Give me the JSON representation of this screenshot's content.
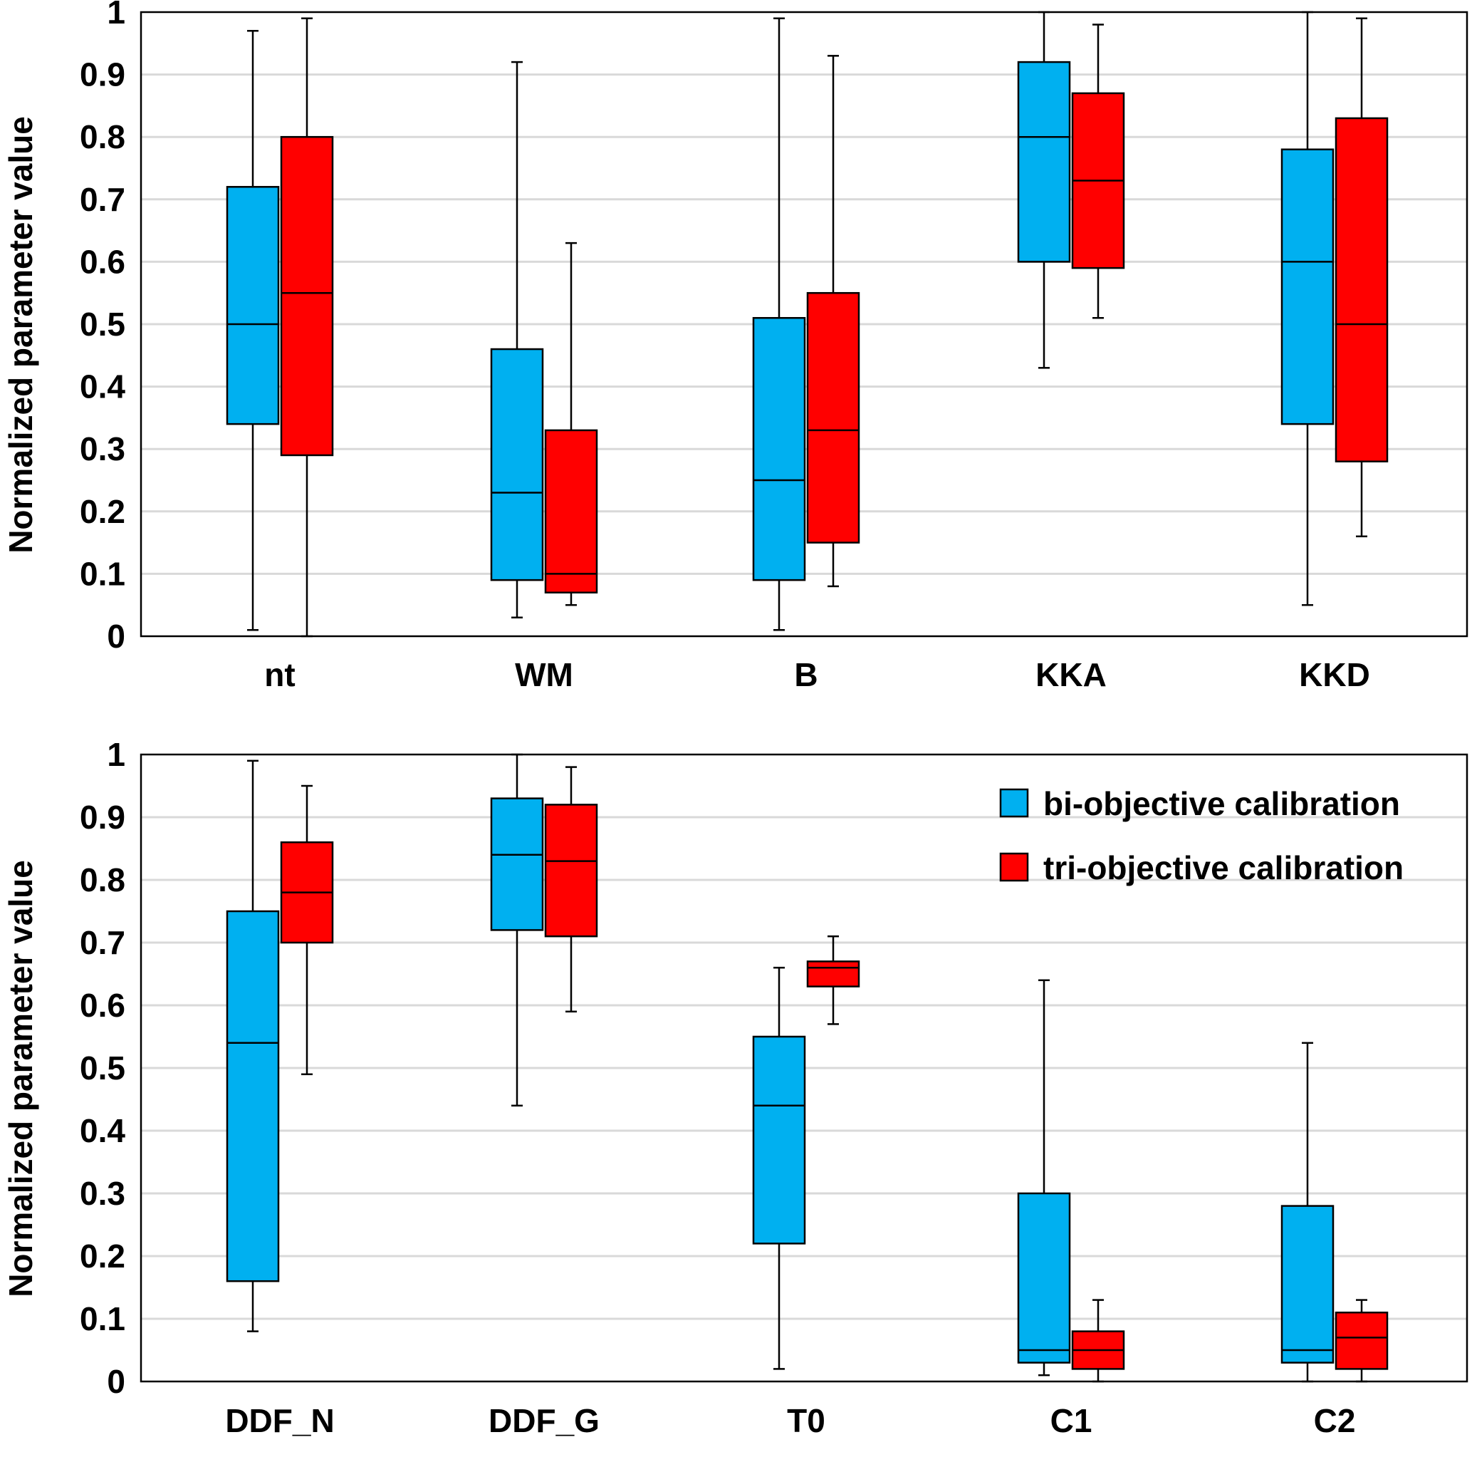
{
  "chart_data": [
    {
      "type": "boxplot",
      "ylabel": "Normalized parameter value",
      "ylim": [
        0,
        1
      ],
      "yticks": [
        "0",
        "0.1",
        "0.2",
        "0.3",
        "0.4",
        "0.5",
        "0.6",
        "0.7",
        "0.8",
        "0.9",
        "1"
      ],
      "grid": true,
      "categories": [
        "nt",
        "WM",
        "B",
        "KKA",
        "KKD"
      ],
      "series": [
        {
          "name": "bi-objective calibration",
          "color": "#00b0f0",
          "stats": [
            {
              "min": 0.01,
              "q1": 0.34,
              "median": 0.5,
              "q3": 0.72,
              "max": 0.97
            },
            {
              "min": 0.03,
              "q1": 0.09,
              "median": 0.23,
              "q3": 0.46,
              "max": 0.92
            },
            {
              "min": 0.01,
              "q1": 0.09,
              "median": 0.25,
              "q3": 0.51,
              "max": 0.99
            },
            {
              "min": 0.43,
              "q1": 0.6,
              "median": 0.8,
              "q3": 0.92,
              "max": 1.0
            },
            {
              "min": 0.05,
              "q1": 0.34,
              "median": 0.6,
              "q3": 0.78,
              "max": 1.0
            }
          ]
        },
        {
          "name": "tri-objective calibration",
          "color": "#ff0000",
          "stats": [
            {
              "min": 0.0,
              "q1": 0.29,
              "median": 0.55,
              "q3": 0.8,
              "max": 0.99
            },
            {
              "min": 0.05,
              "q1": 0.07,
              "median": 0.1,
              "q3": 0.33,
              "max": 0.63
            },
            {
              "min": 0.08,
              "q1": 0.15,
              "median": 0.33,
              "q3": 0.55,
              "max": 0.93
            },
            {
              "min": 0.51,
              "q1": 0.59,
              "median": 0.73,
              "q3": 0.87,
              "max": 0.98
            },
            {
              "min": 0.16,
              "q1": 0.28,
              "median": 0.5,
              "q3": 0.83,
              "max": 0.99
            }
          ]
        }
      ]
    },
    {
      "type": "boxplot",
      "ylabel": "Normalized parameter value",
      "ylim": [
        0,
        1
      ],
      "yticks": [
        "0",
        "0.1",
        "0.2",
        "0.3",
        "0.4",
        "0.5",
        "0.6",
        "0.7",
        "0.8",
        "0.9",
        "1"
      ],
      "grid": true,
      "legend_position": "top-right",
      "categories": [
        "DDF_N",
        "DDF_G",
        "T0",
        "C1",
        "C2"
      ],
      "series": [
        {
          "name": "bi-objective calibration",
          "color": "#00b0f0",
          "stats": [
            {
              "min": 0.08,
              "q1": 0.16,
              "median": 0.54,
              "q3": 0.75,
              "max": 0.99
            },
            {
              "min": 0.44,
              "q1": 0.72,
              "median": 0.84,
              "q3": 0.93,
              "max": 1.0
            },
            {
              "min": 0.02,
              "q1": 0.22,
              "median": 0.44,
              "q3": 0.55,
              "max": 0.66
            },
            {
              "min": 0.01,
              "q1": 0.03,
              "median": 0.05,
              "q3": 0.3,
              "max": 0.64
            },
            {
              "min": 0.0,
              "q1": 0.03,
              "median": 0.05,
              "q3": 0.28,
              "max": 0.54
            }
          ]
        },
        {
          "name": "tri-objective calibration",
          "color": "#ff0000",
          "stats": [
            {
              "min": 0.49,
              "q1": 0.7,
              "median": 0.78,
              "q3": 0.86,
              "max": 0.95
            },
            {
              "min": 0.59,
              "q1": 0.71,
              "median": 0.83,
              "q3": 0.92,
              "max": 0.98
            },
            {
              "min": 0.57,
              "q1": 0.63,
              "median": 0.66,
              "q3": 0.67,
              "max": 0.71
            },
            {
              "min": 0.0,
              "q1": 0.02,
              "median": 0.05,
              "q3": 0.08,
              "max": 0.13
            },
            {
              "min": 0.0,
              "q1": 0.02,
              "median": 0.07,
              "q3": 0.11,
              "max": 0.13
            }
          ]
        }
      ]
    }
  ]
}
